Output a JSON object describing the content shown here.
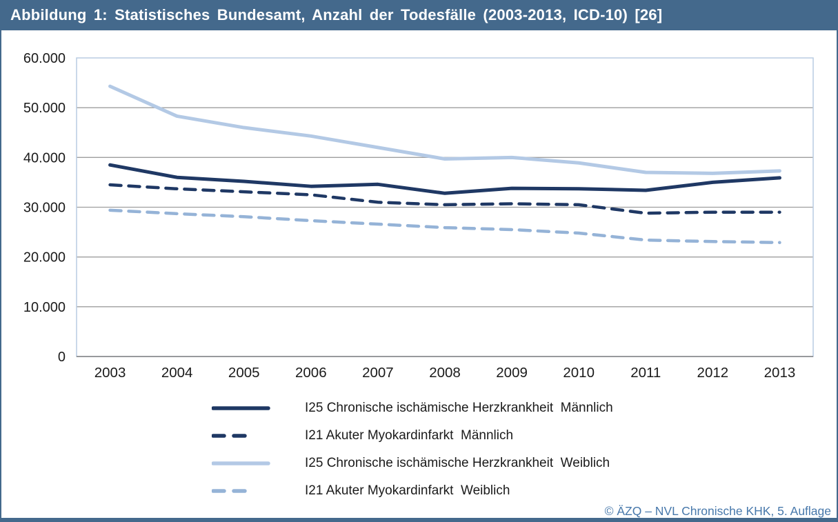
{
  "header": {
    "title": "Abbildung 1: Statistisches Bundesamt, Anzahl der Todesfälle (2003-2013, ICD-10) [26]"
  },
  "footer": {
    "credit": "© ÄZQ – NVL Chronische KHK, 5. Auflage"
  },
  "colors": {
    "header_bg": "#44698C",
    "bottom_bar": "#44698C",
    "plot_border": "#B9CCE2",
    "grid": "#9E9E9E",
    "axis": "#808080",
    "tick_text": "#1A1A1A",
    "footer_text": "#4778AB"
  },
  "chart_data": {
    "type": "line",
    "title": "Statistisches Bundesamt, Anzahl der Todesfälle (2003-2013, ICD-10)",
    "xlabel": "",
    "ylabel": "",
    "categories": [
      "2003",
      "2004",
      "2005",
      "2006",
      "2007",
      "2008",
      "2009",
      "2010",
      "2011",
      "2012",
      "2013"
    ],
    "series": [
      {
        "name": "I25 Chronische ischämische Herzkrankheit  Männlich",
        "color": "#1F3864",
        "dash": "solid",
        "values": [
          38500,
          36000,
          35200,
          34200,
          34600,
          32800,
          33800,
          33700,
          33400,
          35000,
          35900
        ]
      },
      {
        "name": "I21 Akuter Myokardinfarkt  Männlich",
        "color": "#1F3864",
        "dash": "dashed",
        "values": [
          34500,
          33700,
          33100,
          32500,
          31000,
          30500,
          30700,
          30500,
          28800,
          29000,
          29000
        ]
      },
      {
        "name": "I25 Chronische ischämische Herzkrankheit  Weiblich",
        "color": "#B3C9E5",
        "dash": "solid",
        "values": [
          54300,
          48300,
          46000,
          44300,
          42000,
          39700,
          40000,
          38900,
          37000,
          36800,
          37300
        ]
      },
      {
        "name": "I21 Akuter Myokardinfarkt  Weiblich",
        "color": "#95B3D7",
        "dash": "dashed",
        "values": [
          29400,
          28700,
          28100,
          27300,
          26600,
          25900,
          25500,
          24800,
          23400,
          23100,
          22900
        ]
      }
    ],
    "ylim": [
      0,
      60000
    ],
    "ytick_step": 10000,
    "ytick_labels": [
      "0",
      "10.000",
      "20.000",
      "30.000",
      "40.000",
      "50.000",
      "60.000"
    ],
    "grid": "horizontal-only",
    "legend_position": "bottom-left"
  }
}
